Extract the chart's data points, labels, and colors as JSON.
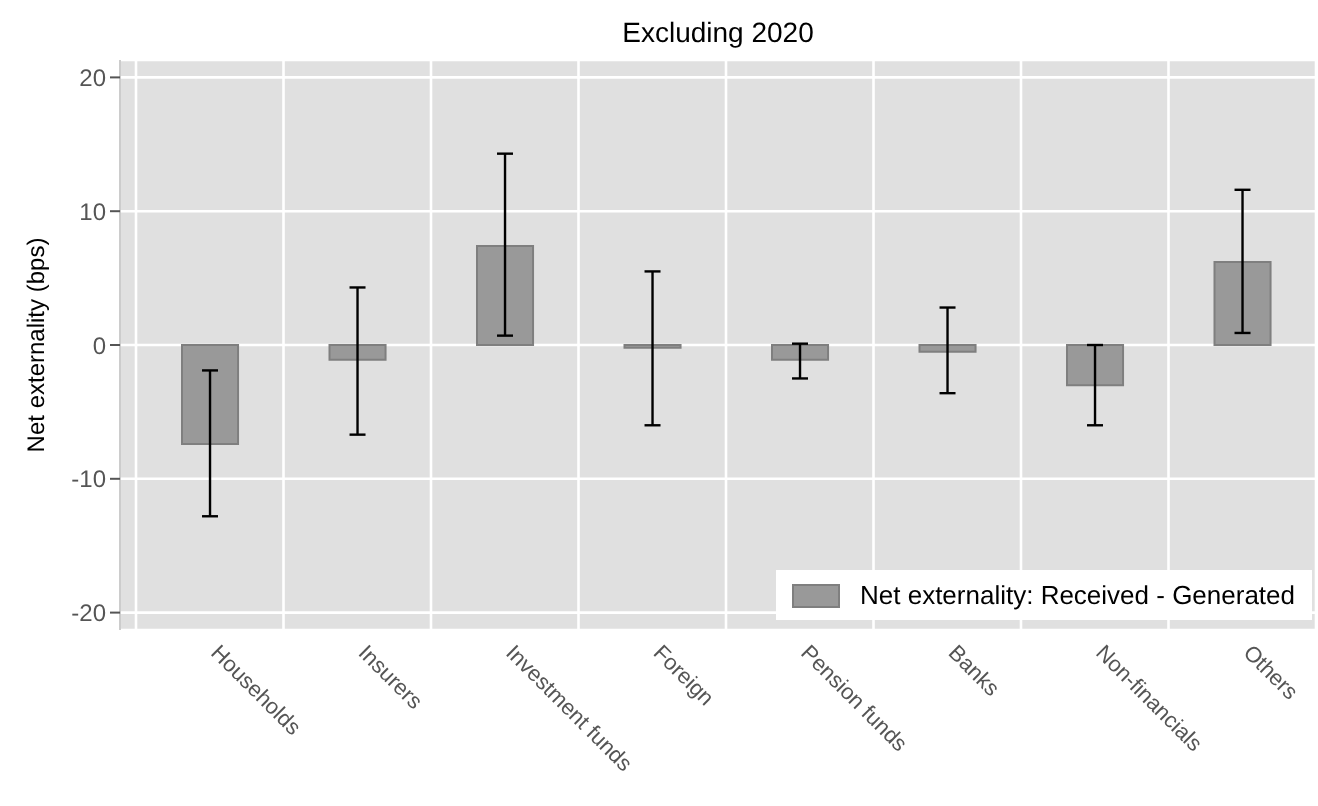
{
  "chart_data": {
    "type": "bar",
    "title": "Excluding 2020",
    "ylabel": "Net externality (bps)",
    "categories": [
      "Households",
      "Insurers",
      "Investment funds",
      "Foreign",
      "Pension funds",
      "Banks",
      "Non-financials",
      "Others"
    ],
    "series": [
      {
        "name": "Net externality: Received - Generated",
        "color": "#999999",
        "values": [
          -7.4,
          -1.1,
          7.4,
          -0.2,
          -1.1,
          -0.5,
          -3.0,
          6.2
        ],
        "errors": [
          [
            -12.8,
            -1.9
          ],
          [
            -6.7,
            4.3
          ],
          [
            0.7,
            14.3
          ],
          [
            -6.0,
            5.5
          ],
          [
            -2.5,
            0.1
          ],
          [
            -3.6,
            2.8
          ],
          [
            -6.0,
            0.0
          ],
          [
            0.9,
            11.6
          ]
        ]
      }
    ],
    "ylim": [
      -21.3,
      21.3
    ],
    "yticks": [
      -20,
      -10,
      0,
      10,
      20
    ],
    "grid": true,
    "legend": "bottom right"
  }
}
